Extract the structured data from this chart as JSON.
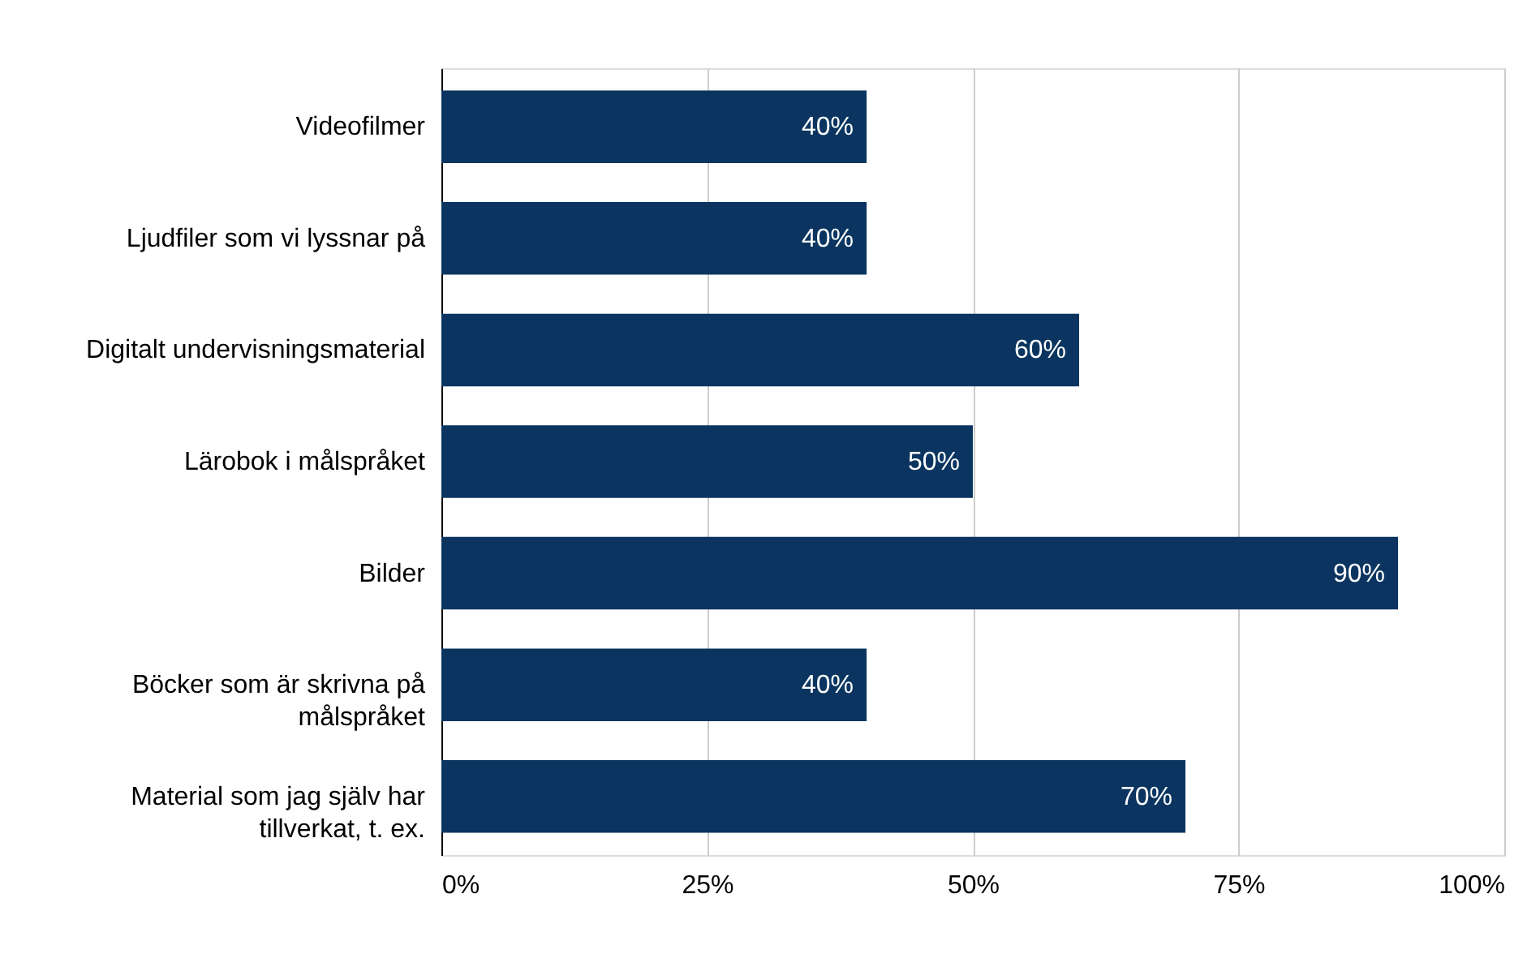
{
  "chart_data": {
    "type": "bar",
    "orientation": "horizontal",
    "categories": [
      "Videofilmer",
      "Ljudfiler som vi lyssnar på",
      "Digitalt undervisningsmaterial",
      "Lärobok i målspråket",
      "Bilder",
      "Böcker som är skrivna på målspråket",
      "Material som jag själv har tillverkat, t. ex."
    ],
    "values": [
      40,
      40,
      60,
      50,
      90,
      40,
      70
    ],
    "value_labels": [
      "40%",
      "40%",
      "60%",
      "50%",
      "90%",
      "40%",
      "70%"
    ],
    "color": "#0b3560",
    "xlim": [
      0,
      100
    ],
    "xticks": [
      {
        "value": 0,
        "label": "0%"
      },
      {
        "value": 25,
        "label": "25%"
      },
      {
        "value": 50,
        "label": "50%"
      },
      {
        "value": 75,
        "label": "75%"
      },
      {
        "value": 100,
        "label": "100%"
      }
    ],
    "grid": "x"
  }
}
